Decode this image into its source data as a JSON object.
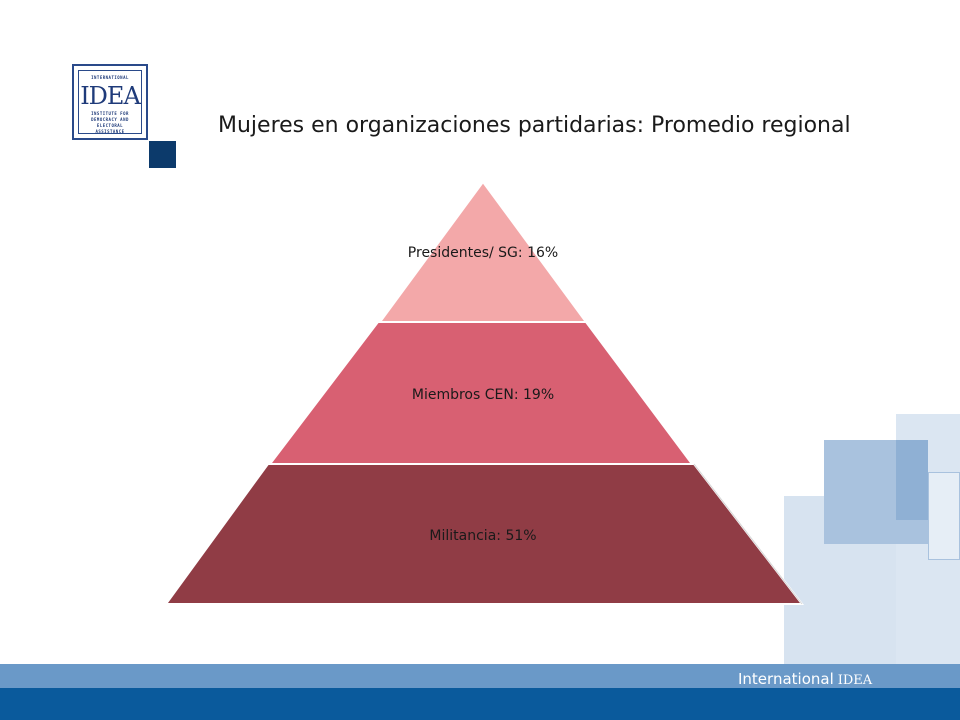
{
  "logo": {
    "line_top": "INTERNATIONAL",
    "mark": "IDEA",
    "line_1": "INSTITUTE FOR",
    "line_2": "DEMOCRACY AND",
    "line_3": "ELECTORAL",
    "line_4": "ASSISTANCE"
  },
  "title": "Mujeres en organizaciones partidarias: Promedio regional",
  "pyramid": {
    "levels": [
      {
        "label": "Presidentes/ SG: 16%",
        "color": "#f3a8a9"
      },
      {
        "label": "Miembros CEN: 19%",
        "color": "#d86072"
      },
      {
        "label": "Militancia: 51%",
        "color": "#903c45"
      }
    ]
  },
  "footer": {
    "brand": "International",
    "brand_suffix": "IDEA"
  },
  "colors": {
    "footer_light": "#6a99c8",
    "footer_dark": "#0a5a9c",
    "logo_square": "#0c3a6b",
    "deco_light": "#d7e3f0",
    "deco_mid": "#a9c2de",
    "deco_dark": "#86aad1"
  }
}
